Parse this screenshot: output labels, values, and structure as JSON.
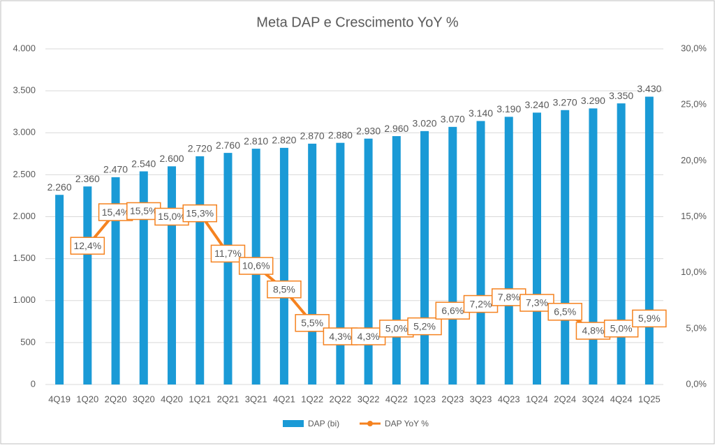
{
  "chart_data": {
    "type": "bar_line",
    "title": "Meta DAP e Crescimento YoY %",
    "categories": [
      "4Q19",
      "1Q20",
      "2Q20",
      "3Q20",
      "4Q20",
      "1Q21",
      "2Q21",
      "3Q21",
      "4Q21",
      "1Q22",
      "2Q22",
      "3Q22",
      "4Q22",
      "1Q23",
      "2Q23",
      "3Q23",
      "4Q23",
      "1Q24",
      "2Q24",
      "3Q24",
      "4Q24",
      "1Q25"
    ],
    "series": [
      {
        "name": "DAP (bi)",
        "color": "#1a9ad6",
        "type": "bar",
        "values": [
          2260,
          2360,
          2470,
          2540,
          2600,
          2720,
          2760,
          2810,
          2820,
          2870,
          2880,
          2930,
          2960,
          3020,
          3070,
          3140,
          3190,
          3240,
          3270,
          3290,
          3350,
          3430
        ],
        "value_labels": [
          "2.260",
          "2.360",
          "2.470",
          "2.540",
          "2.600",
          "2.720",
          "2.760",
          "2.810",
          "2.820",
          "2.870",
          "2.880",
          "2.930",
          "2.960",
          "3.020",
          "3.070",
          "3.140",
          "3.190",
          "3.240",
          "3.270",
          "3.290",
          "3.350",
          "3.430"
        ]
      },
      {
        "name": "DAP YoY %",
        "color": "#f5821f",
        "type": "line",
        "axis": "y2",
        "values": [
          null,
          12.4,
          15.4,
          15.5,
          15.0,
          15.3,
          11.7,
          10.6,
          8.5,
          5.5,
          4.3,
          4.3,
          5.0,
          5.2,
          6.6,
          7.2,
          7.8,
          7.3,
          6.5,
          4.8,
          5.0,
          5.9
        ],
        "value_labels": [
          null,
          "12,4%",
          "15,4%",
          "15,5%",
          "15,0%",
          "15,3%",
          "11,7%",
          "10,6%",
          "8,5%",
          "5,5%",
          "4,3%",
          "4,3%",
          "5,0%",
          "5,2%",
          "6,6%",
          "7,2%",
          "7,8%",
          "7,3%",
          "6,5%",
          "4,8%",
          "5,0%",
          "5,9%"
        ]
      }
    ],
    "ylim": [
      0,
      4000
    ],
    "yticks": [
      0,
      {
        "value": 500,
        "label": "500"
      },
      {
        "value": 1000,
        "label": "1.000"
      },
      {
        "value": 1500,
        "label": "1.500"
      },
      {
        "value": 2000,
        "label": "2.000"
      },
      {
        "value": 2500,
        "label": "2.500"
      },
      {
        "value": 3000,
        "label": "3.000"
      },
      {
        "value": 3500,
        "label": "3.500"
      },
      {
        "value": 4000,
        "label": "4.000"
      }
    ],
    "y2lim": [
      0,
      30
    ],
    "y2ticks": [
      {
        "value": 0,
        "label": "0,0%"
      },
      {
        "value": 5,
        "label": "5,0%"
      },
      {
        "value": 10,
        "label": "10,0%"
      },
      {
        "value": 15,
        "label": "15,0%"
      },
      {
        "value": 20,
        "label": "20,0%"
      },
      {
        "value": 25,
        "label": "25,0%"
      },
      {
        "value": 30,
        "label": "30,0%"
      }
    ],
    "grid": true,
    "legend": "bottom"
  }
}
